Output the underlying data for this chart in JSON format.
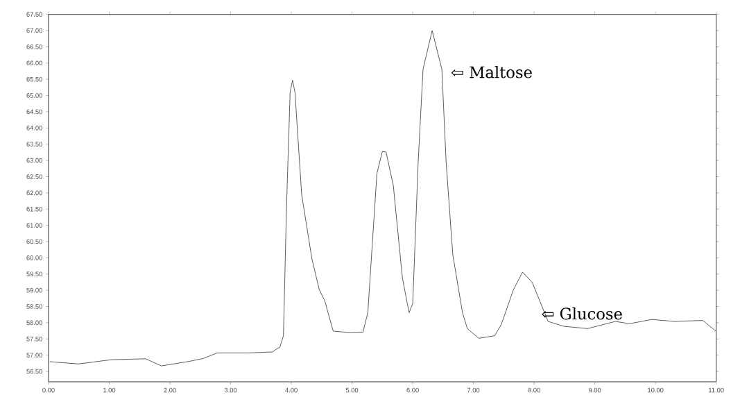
{
  "chart_data": {
    "type": "line",
    "x": [
      0.02,
      0.49,
      1.03,
      1.6,
      1.86,
      2.32,
      2.55,
      2.78,
      3.31,
      3.69,
      3.77,
      3.81,
      3.87,
      3.92,
      3.98,
      4.02,
      4.06,
      4.17,
      4.34,
      4.46,
      4.55,
      4.69,
      4.95,
      5.18,
      5.26,
      5.41,
      5.5,
      5.56,
      5.68,
      5.83,
      5.94,
      6.0,
      6.09,
      6.17,
      6.32,
      6.48,
      6.55,
      6.66,
      6.82,
      6.9,
      7.09,
      7.35,
      7.46,
      7.66,
      7.81,
      7.97,
      8.23,
      8.49,
      8.88,
      9.34,
      9.57,
      9.94,
      10.32,
      10.78,
      10.97,
      11.0
    ],
    "series": [
      {
        "color": "#333333",
        "values": [
          56.8,
          56.73,
          56.86,
          56.89,
          56.67,
          56.81,
          56.9,
          57.07,
          57.07,
          57.1,
          57.21,
          57.24,
          57.6,
          61.53,
          65.1,
          65.47,
          65.1,
          61.95,
          59.96,
          59.02,
          58.68,
          57.74,
          57.7,
          57.71,
          58.31,
          62.6,
          63.28,
          63.26,
          62.23,
          59.38,
          58.31,
          58.59,
          62.96,
          65.81,
          67.0,
          65.81,
          62.96,
          60.1,
          58.31,
          57.82,
          57.52,
          57.6,
          57.95,
          59.02,
          59.56,
          59.24,
          58.04,
          57.89,
          57.82,
          58.04,
          57.97,
          58.1,
          58.04,
          58.07,
          57.78,
          57.73
        ]
      }
    ],
    "xlim": [
      0,
      11
    ],
    "ylim": [
      56.18,
      67.5
    ],
    "xticks": [
      {
        "value": 0,
        "label": "0.00"
      },
      {
        "value": 1,
        "label": "1.00"
      },
      {
        "value": 2,
        "label": "2.00"
      },
      {
        "value": 3,
        "label": "3.00"
      },
      {
        "value": 4,
        "label": "4.00"
      },
      {
        "value": 5,
        "label": "5.00"
      },
      {
        "value": 6,
        "label": "6.00"
      },
      {
        "value": 7,
        "label": "7.00"
      },
      {
        "value": 8,
        "label": "8.00"
      },
      {
        "value": 9,
        "label": "9.00"
      },
      {
        "value": 10,
        "label": "10.00"
      },
      {
        "value": 11,
        "label": "11.00"
      }
    ],
    "yticks": [
      {
        "value": 56.5,
        "label": "56.50"
      },
      {
        "value": 57,
        "label": "57.00"
      },
      {
        "value": 57.5,
        "label": "57.50"
      },
      {
        "value": 58,
        "label": "58.00"
      },
      {
        "value": 58.5,
        "label": "58.50"
      },
      {
        "value": 59,
        "label": "59.00"
      },
      {
        "value": 59.5,
        "label": "59.50"
      },
      {
        "value": 60,
        "label": "60.00"
      },
      {
        "value": 60.5,
        "label": "60.50"
      },
      {
        "value": 61,
        "label": "61.00"
      },
      {
        "value": 61.5,
        "label": "61.50"
      },
      {
        "value": 62,
        "label": "62.00"
      },
      {
        "value": 62.5,
        "label": "62.50"
      },
      {
        "value": 63,
        "label": "63.00"
      },
      {
        "value": 63.5,
        "label": "63.50"
      },
      {
        "value": 64,
        "label": "64.00"
      },
      {
        "value": 64.5,
        "label": "64.50"
      },
      {
        "value": 65,
        "label": "65.00"
      },
      {
        "value": 65.5,
        "label": "65.50"
      },
      {
        "value": 66,
        "label": "66.00"
      },
      {
        "value": 66.5,
        "label": "66.50"
      },
      {
        "value": 67,
        "label": "67.00"
      },
      {
        "value": 67.5,
        "label": "67.50"
      }
    ],
    "grid": false,
    "marker": "none",
    "line_style": "solid",
    "annotations": [
      {
        "text": "⇦ Maltose",
        "x": 6.32,
        "y": 67.0
      },
      {
        "text": "⇦ Glucose",
        "x": 7.81,
        "y": 59.56
      }
    ]
  }
}
